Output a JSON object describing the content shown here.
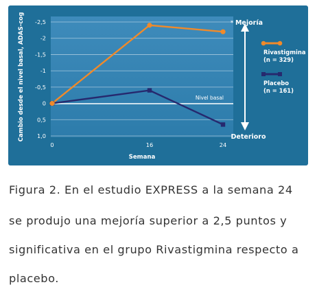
{
  "colors": {
    "panel": "#1f6f99",
    "plot_bg_top": "#3a86b5",
    "plot_bg_bottom": "#2a7aa8",
    "rivastigmina": "#f08a2a",
    "placebo": "#26296e",
    "axis_text": "#ffffff"
  },
  "chart_data": {
    "type": "line",
    "ylabel": "Cambio desde el nivel basal, ADAS-cog",
    "xlabel": "Semana",
    "x": [
      0,
      16,
      24
    ],
    "x_ticks": [
      "0",
      "16",
      "24"
    ],
    "y_ticks": [
      "-2,5",
      "-2",
      "-1,5",
      "-1",
      "-0,5",
      "0",
      "0,5",
      "1,0"
    ],
    "y_tick_values": [
      -2.5,
      -2,
      -1.5,
      -1,
      -0.5,
      0,
      0.5,
      1.0
    ],
    "ylim": [
      -2.6,
      1.0
    ],
    "y_inverted": true,
    "grid": true,
    "series": [
      {
        "name": "Rivastigmina",
        "n_label": "(n = 329)",
        "values": [
          0,
          -2.4,
          -2.2
        ],
        "color": "#f08a2a",
        "marker": "circle"
      },
      {
        "name": "Placebo",
        "n_label": "(n = 161)",
        "values": [
          0,
          -0.4,
          0.65
        ],
        "color": "#26296e",
        "marker": "square"
      }
    ],
    "baseline_label": "Nivel basal",
    "significance_mark": "*",
    "arrow_top_label": "Mejoría",
    "arrow_bottom_label": "Deterioro",
    "legend_position": "right"
  },
  "caption": {
    "line1": "Figura 2. En el estudio EXPRESS a la semana 24",
    "line2": "se produjo una mejoría superior a 2,5 puntos y",
    "line3": "significativa en el grupo Rivastigmina respecto a",
    "line4": "placebo."
  }
}
